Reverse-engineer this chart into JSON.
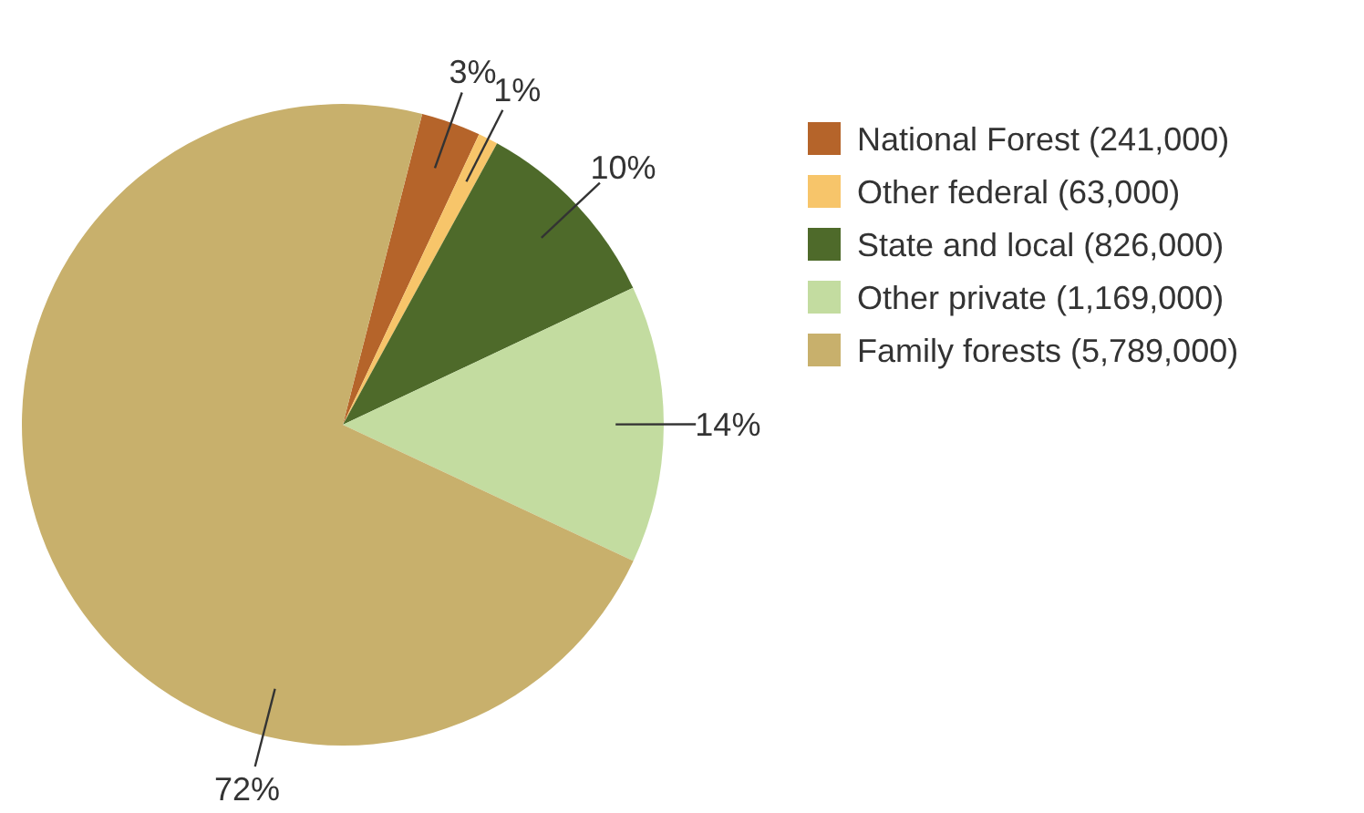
{
  "chart_data": {
    "type": "pie",
    "categories": [
      "National Forest (241,000)",
      "Other federal (63,000)",
      "State and local (826,000)",
      "Other private (1,169,000)",
      "Family forests (5,789,000)"
    ],
    "values": [
      3,
      1,
      10,
      14,
      72
    ],
    "colors": [
      "#b5642a",
      "#f7c56a",
      "#4e6a2a",
      "#c3dca0",
      "#c8b06c"
    ],
    "value_labels": [
      "3%",
      "1%",
      "10%",
      "14%",
      "72%"
    ],
    "legend": "right"
  }
}
